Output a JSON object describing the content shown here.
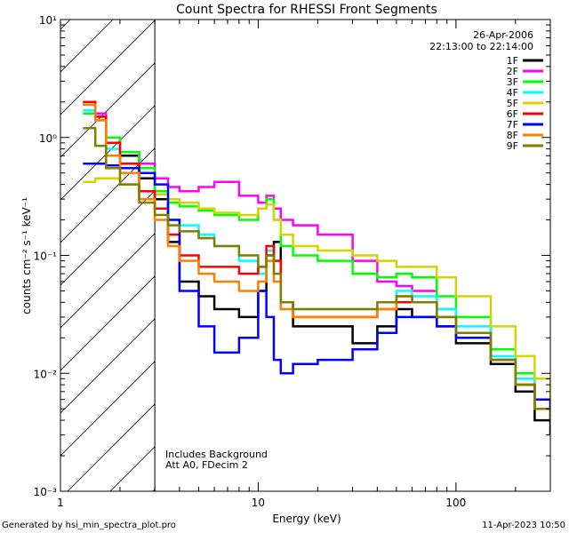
{
  "chart_data": {
    "type": "line",
    "title": "Count Spectra for RHESSI Front Segments",
    "xlabel": "Energy (keV)",
    "ylabel": "counts cm⁻² s⁻¹ keV⁻¹",
    "xscale": "log",
    "yscale": "log",
    "xlim": [
      1,
      300
    ],
    "ylim": [
      0.001,
      10
    ],
    "x_ticks": [
      {
        "v": 1,
        "label": "1"
      },
      {
        "v": 10,
        "label": "10"
      },
      {
        "v": 100,
        "label": "100"
      }
    ],
    "y_ticks": [
      {
        "v": 0.001,
        "label": "10⁻³"
      },
      {
        "v": 0.01,
        "label": "10⁻²"
      },
      {
        "v": 0.1,
        "label": "10⁻¹"
      },
      {
        "v": 1,
        "label": "10⁰"
      },
      {
        "v": 10,
        "label": "10¹"
      }
    ],
    "date": "26-Apr-2006",
    "time_range": "22:13:00 to 22:14:00",
    "excluded_region": {
      "from_keV": 1,
      "to_keV": 3
    },
    "annotations": [
      "Includes Background",
      "Att A0, FDecim 2"
    ],
    "series": [
      {
        "name": "1F",
        "color": "#000000",
        "x": [
          1.3,
          1.5,
          1.7,
          2,
          2.5,
          3,
          3.5,
          4,
          5,
          6,
          8,
          10,
          11,
          12,
          13,
          15,
          20,
          30,
          40,
          50,
          60,
          80,
          100,
          150,
          200,
          250,
          300
        ],
        "y": [
          1.9,
          1.5,
          0.9,
          0.7,
          0.45,
          0.3,
          0.13,
          0.06,
          0.045,
          0.035,
          0.03,
          0.05,
          0.1,
          0.13,
          0.04,
          0.025,
          0.025,
          0.018,
          0.025,
          0.035,
          0.03,
          0.025,
          0.018,
          0.012,
          0.007,
          0.004,
          0.003
        ]
      },
      {
        "name": "2F",
        "color": "#ff00ff",
        "x": [
          1.3,
          1.5,
          1.7,
          2,
          2.5,
          3,
          3.5,
          4,
          5,
          6,
          8,
          10,
          11,
          12,
          13,
          15,
          20,
          30,
          40,
          50,
          60,
          80,
          100,
          150,
          200,
          250,
          300
        ],
        "y": [
          1.9,
          1.6,
          1.0,
          0.75,
          0.6,
          0.45,
          0.38,
          0.35,
          0.38,
          0.42,
          0.32,
          0.28,
          0.32,
          0.25,
          0.2,
          0.18,
          0.15,
          0.09,
          0.06,
          0.055,
          0.05,
          0.035,
          0.022,
          0.013,
          0.008,
          0.005,
          0.004
        ]
      },
      {
        "name": "3F",
        "color": "#00ff00",
        "x": [
          1.3,
          1.5,
          1.7,
          2,
          2.5,
          3,
          3.5,
          4,
          5,
          6,
          8,
          10,
          11,
          12,
          13,
          15,
          20,
          30,
          40,
          50,
          60,
          80,
          100,
          150,
          200,
          250,
          300
        ],
        "y": [
          1.6,
          1.4,
          1.0,
          0.75,
          0.55,
          0.35,
          0.28,
          0.26,
          0.24,
          0.22,
          0.2,
          0.25,
          0.3,
          0.2,
          0.12,
          0.1,
          0.09,
          0.07,
          0.065,
          0.07,
          0.065,
          0.045,
          0.03,
          0.016,
          0.01,
          0.006,
          0.005
        ]
      },
      {
        "name": "4F",
        "color": "#00ffff",
        "x": [
          1.3,
          1.5,
          1.7,
          2,
          2.5,
          3,
          3.5,
          4,
          5,
          6,
          8,
          10,
          11,
          12,
          13,
          15,
          20,
          30,
          40,
          50,
          60,
          80,
          100,
          150,
          200,
          250,
          300
        ],
        "y": [
          1.7,
          1.4,
          0.8,
          0.5,
          0.3,
          0.25,
          0.2,
          0.18,
          0.15,
          0.12,
          0.09,
          0.07,
          0.11,
          0.06,
          0.035,
          0.035,
          0.035,
          0.035,
          0.04,
          0.05,
          0.045,
          0.035,
          0.025,
          0.014,
          0.009,
          0.006,
          0.004
        ]
      },
      {
        "name": "5F",
        "color": "#d4d400",
        "x": [
          1.3,
          1.5,
          1.7,
          2,
          2.5,
          3,
          3.5,
          4,
          5,
          6,
          8,
          10,
          11,
          12,
          13,
          15,
          20,
          30,
          40,
          50,
          60,
          80,
          100,
          150,
          200,
          250,
          300
        ],
        "y": [
          0.42,
          0.45,
          0.45,
          0.4,
          0.35,
          0.33,
          0.3,
          0.28,
          0.25,
          0.23,
          0.22,
          0.25,
          0.27,
          0.2,
          0.15,
          0.12,
          0.11,
          0.1,
          0.09,
          0.08,
          0.08,
          0.065,
          0.045,
          0.025,
          0.014,
          0.009,
          0.006
        ]
      },
      {
        "name": "6F",
        "color": "#ff0000",
        "x": [
          1.3,
          1.5,
          1.7,
          2,
          2.5,
          3,
          3.5,
          4,
          5,
          6,
          8,
          10,
          11,
          12,
          13,
          15,
          20,
          30,
          40,
          50,
          60,
          80,
          100,
          150,
          200,
          250,
          300
        ],
        "y": [
          2.0,
          1.5,
          0.9,
          0.6,
          0.35,
          0.25,
          0.15,
          0.1,
          0.08,
          0.08,
          0.07,
          0.08,
          0.12,
          0.09,
          0.04,
          0.03,
          0.03,
          0.03,
          0.035,
          0.04,
          0.04,
          0.03,
          0.02,
          0.013,
          0.008,
          0.005,
          0.004
        ]
      },
      {
        "name": "7F",
        "color": "#0000ff",
        "x": [
          1.3,
          1.5,
          1.7,
          2,
          2.5,
          3,
          3.5,
          4,
          5,
          6,
          8,
          10,
          11,
          12,
          13,
          15,
          20,
          30,
          40,
          50,
          60,
          80,
          100,
          150,
          200,
          250,
          300
        ],
        "y": [
          0.6,
          0.6,
          0.58,
          0.55,
          0.5,
          0.4,
          0.2,
          0.05,
          0.025,
          0.015,
          0.02,
          0.05,
          0.03,
          0.013,
          0.01,
          0.012,
          0.013,
          0.016,
          0.022,
          0.03,
          0.03,
          0.025,
          0.02,
          0.013,
          0.008,
          0.006,
          0.004
        ]
      },
      {
        "name": "8F",
        "color": "#ff7f00",
        "x": [
          1.3,
          1.5,
          1.7,
          2,
          2.5,
          3,
          3.5,
          4,
          5,
          6,
          8,
          10,
          11,
          12,
          13,
          15,
          20,
          30,
          40,
          50,
          60,
          80,
          100,
          150,
          200,
          250,
          300
        ],
        "y": [
          1.9,
          1.4,
          0.7,
          0.5,
          0.3,
          0.2,
          0.12,
          0.09,
          0.07,
          0.06,
          0.05,
          0.06,
          0.09,
          0.06,
          0.035,
          0.03,
          0.03,
          0.03,
          0.035,
          0.045,
          0.04,
          0.03,
          0.022,
          0.013,
          0.008,
          0.005,
          0.004
        ]
      },
      {
        "name": "9F",
        "color": "#7f7f00",
        "x": [
          1.3,
          1.5,
          1.7,
          2,
          2.5,
          3,
          3.5,
          4,
          5,
          6,
          8,
          10,
          11,
          12,
          13,
          15,
          20,
          30,
          40,
          50,
          60,
          80,
          100,
          150,
          200,
          250,
          300
        ],
        "y": [
          1.2,
          0.85,
          0.55,
          0.4,
          0.28,
          0.22,
          0.18,
          0.16,
          0.14,
          0.12,
          0.1,
          0.08,
          0.1,
          0.07,
          0.04,
          0.035,
          0.035,
          0.035,
          0.04,
          0.045,
          0.04,
          0.03,
          0.022,
          0.013,
          0.008,
          0.005,
          0.004
        ]
      }
    ]
  },
  "footer": {
    "generated_by": "Generated by hsi_min_spectra_plot.pro",
    "timestamp": "11-Apr-2023 10:50"
  }
}
